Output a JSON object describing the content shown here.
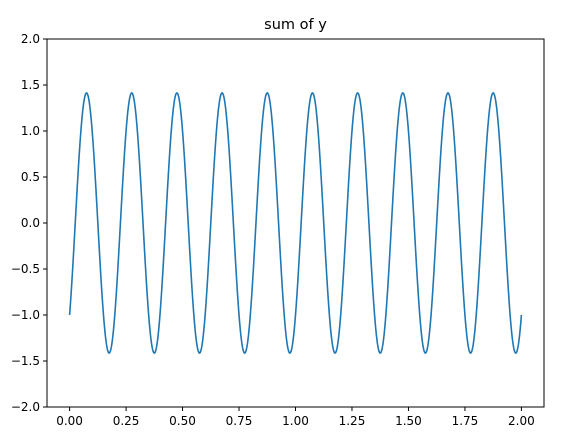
{
  "chart_data": {
    "type": "line",
    "title": "sum of y",
    "xlabel": "",
    "ylabel": "",
    "xlim": [
      -0.1,
      2.1
    ],
    "ylim": [
      -2.0,
      2.0
    ],
    "x_ticks": [
      0.0,
      0.25,
      0.5,
      0.75,
      1.0,
      1.25,
      1.5,
      1.75,
      2.0
    ],
    "x_tick_labels": [
      "0.00",
      "0.25",
      "0.50",
      "0.75",
      "1.00",
      "1.25",
      "1.50",
      "1.75",
      "2.00"
    ],
    "y_ticks": [
      -2.0,
      -1.5,
      -1.0,
      -0.5,
      0.0,
      0.5,
      1.0,
      1.5,
      2.0
    ],
    "y_tick_labels": [
      "−2.0",
      "−1.5",
      "−1.0",
      "−0.5",
      "0.0",
      "0.5",
      "1.0",
      "1.5",
      "2.0"
    ],
    "grid": false,
    "series": [
      {
        "color": "#1f77b4",
        "x_range": [
          0.0,
          2.0
        ],
        "num_periods": 10,
        "amplitude": 1.414,
        "start_value": -1.0,
        "end_value": -1.0,
        "peak_x": [
          0.075,
          0.275,
          0.475,
          0.675,
          0.875,
          1.075,
          1.275,
          1.475,
          1.675,
          1.875
        ],
        "peak_y": 1.414,
        "trough_x": [
          0.175,
          0.375,
          0.575,
          0.775,
          0.975,
          1.175,
          1.375,
          1.575,
          1.775,
          1.975
        ],
        "trough_y": -1.414
      }
    ]
  }
}
